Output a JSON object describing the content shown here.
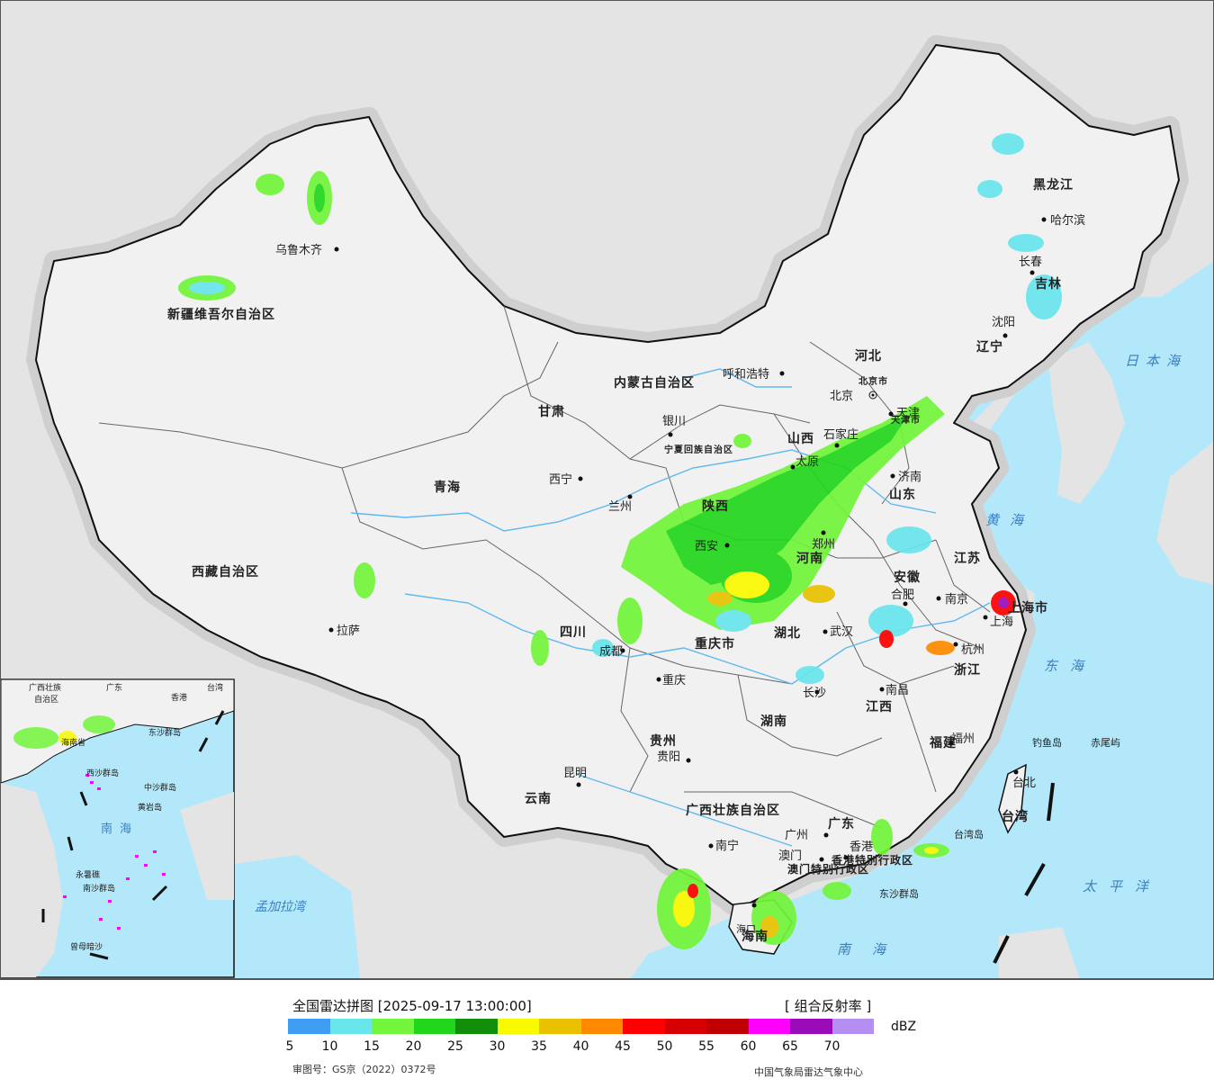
{
  "title": "全国雷达拼图 [2025-09-17 13:00:00]",
  "product": "[ 组合反射率 ]",
  "unit": "dBZ",
  "approval_number": "审图号：GS京（2022）0372号",
  "source": "中国气象局雷达气象中心",
  "legend": {
    "colors": [
      "#3f9ef2",
      "#68e6ec",
      "#72f53a",
      "#22d61c",
      "#118f0a",
      "#f9f900",
      "#e8c200",
      "#ff8a00",
      "#ff0000",
      "#d60000",
      "#c00000",
      "#ff00ff",
      "#9a0cba",
      "#b48ef0"
    ],
    "ticks": [
      "5",
      "10",
      "15",
      "20",
      "25",
      "30",
      "35",
      "40",
      "45",
      "50",
      "55",
      "60",
      "65",
      "70"
    ]
  },
  "map_labels": {
    "provinces": [
      "新疆维吾尔自治区",
      "西藏自治区",
      "青海",
      "甘肃",
      "内蒙古自治区",
      "黑龙江",
      "吉林",
      "辽宁",
      "河北",
      "山西",
      "山东",
      "河南",
      "江苏",
      "安徽",
      "湖北",
      "四川",
      "重庆市",
      "陕西",
      "湖南",
      "江西",
      "浙江",
      "福建",
      "贵州",
      "云南",
      "广西壮族自治区",
      "广东",
      "宁夏回族自治区",
      "北京市",
      "天津市",
      "上海市",
      "香港特别行政区",
      "澳门特别行政区",
      "台湾",
      "海南"
    ],
    "cities": [
      "乌鲁木齐",
      "拉萨",
      "西宁",
      "兰州",
      "银川",
      "呼和浩特",
      "北京",
      "天津",
      "石家庄",
      "太原",
      "济南",
      "郑州",
      "西安",
      "南京",
      "合肥",
      "上海",
      "杭州",
      "武汉",
      "成都",
      "重庆",
      "长沙",
      "南昌",
      "福州",
      "贵阳",
      "昆明",
      "南宁",
      "广州",
      "香港",
      "澳门",
      "沈阳",
      "长春",
      "哈尔滨",
      "台北",
      "海口"
    ],
    "seas": [
      "日本海",
      "黄海",
      "东海",
      "太平洋",
      "南海",
      "孟加拉湾"
    ],
    "islands": [
      "钓鱼岛",
      "赤尾屿",
      "台湾岛",
      "东沙群岛"
    ],
    "inset": [
      "广西壮族",
      "自治区",
      "广东",
      "香港",
      "台湾",
      "海南省",
      "东沙群岛",
      "中沙群岛",
      "西沙群岛",
      "黄岩岛",
      "南海",
      "永暑礁",
      "南沙群岛",
      "曾母暗沙"
    ]
  }
}
